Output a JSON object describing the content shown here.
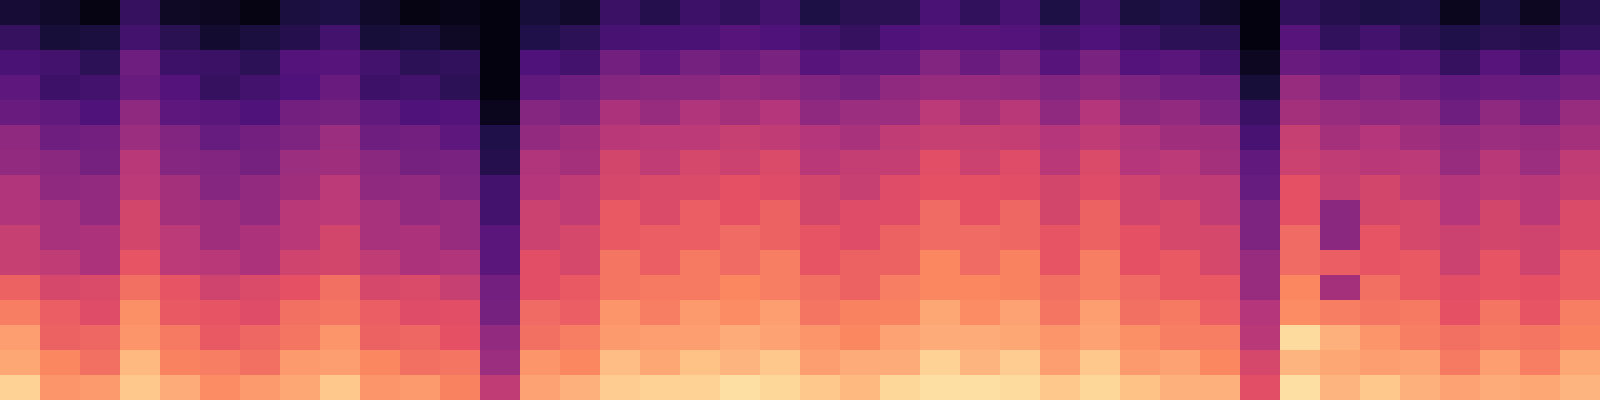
{
  "chart_data": {
    "type": "heatmap",
    "tick_labels": false,
    "zlim": [
      0,
      1
    ],
    "values": [
      [
        0.1,
        0.08,
        0.03,
        0.19,
        0.07,
        0.06,
        0.03,
        0.12,
        0.13,
        0.08,
        0.03,
        0.04,
        0.02,
        0.11,
        0.08,
        0.2,
        0.15,
        0.21,
        0.18,
        0.22,
        0.13,
        0.16,
        0.16,
        0.24,
        0.18,
        0.23,
        0.13,
        0.22,
        0.12,
        0.14,
        0.08,
        0.02,
        0.18,
        0.15,
        0.13,
        0.14,
        0.05,
        0.13,
        0.06,
        0.15
      ],
      [
        0.19,
        0.11,
        0.12,
        0.22,
        0.16,
        0.09,
        0.12,
        0.15,
        0.22,
        0.11,
        0.12,
        0.07,
        0.02,
        0.14,
        0.17,
        0.23,
        0.24,
        0.24,
        0.27,
        0.25,
        0.22,
        0.19,
        0.25,
        0.27,
        0.27,
        0.26,
        0.22,
        0.25,
        0.21,
        0.17,
        0.17,
        0.02,
        0.27,
        0.18,
        0.22,
        0.17,
        0.14,
        0.16,
        0.15,
        0.18
      ],
      [
        0.24,
        0.22,
        0.17,
        0.33,
        0.21,
        0.2,
        0.17,
        0.26,
        0.27,
        0.22,
        0.17,
        0.18,
        0.02,
        0.25,
        0.22,
        0.34,
        0.29,
        0.35,
        0.32,
        0.36,
        0.27,
        0.3,
        0.3,
        0.38,
        0.32,
        0.37,
        0.27,
        0.36,
        0.26,
        0.28,
        0.22,
        0.06,
        0.32,
        0.29,
        0.27,
        0.28,
        0.19,
        0.27,
        0.2,
        0.29
      ],
      [
        0.29,
        0.21,
        0.22,
        0.32,
        0.26,
        0.19,
        0.22,
        0.25,
        0.32,
        0.21,
        0.22,
        0.17,
        0.02,
        0.3,
        0.33,
        0.39,
        0.4,
        0.4,
        0.43,
        0.41,
        0.38,
        0.35,
        0.41,
        0.43,
        0.43,
        0.42,
        0.38,
        0.41,
        0.37,
        0.33,
        0.33,
        0.11,
        0.43,
        0.34,
        0.38,
        0.33,
        0.3,
        0.32,
        0.31,
        0.34
      ],
      [
        0.32,
        0.3,
        0.25,
        0.41,
        0.29,
        0.28,
        0.25,
        0.34,
        0.35,
        0.3,
        0.25,
        0.26,
        0.05,
        0.39,
        0.36,
        0.48,
        0.43,
        0.49,
        0.46,
        0.5,
        0.41,
        0.44,
        0.44,
        0.52,
        0.46,
        0.51,
        0.41,
        0.5,
        0.4,
        0.42,
        0.36,
        0.2,
        0.46,
        0.43,
        0.41,
        0.42,
        0.33,
        0.41,
        0.34,
        0.43
      ],
      [
        0.41,
        0.33,
        0.34,
        0.44,
        0.38,
        0.31,
        0.34,
        0.37,
        0.44,
        0.33,
        0.34,
        0.29,
        0.14,
        0.42,
        0.45,
        0.51,
        0.52,
        0.52,
        0.55,
        0.53,
        0.5,
        0.47,
        0.53,
        0.55,
        0.55,
        0.54,
        0.5,
        0.53,
        0.49,
        0.45,
        0.45,
        0.23,
        0.55,
        0.46,
        0.5,
        0.45,
        0.42,
        0.44,
        0.43,
        0.46
      ],
      [
        0.42,
        0.4,
        0.35,
        0.51,
        0.39,
        0.38,
        0.35,
        0.44,
        0.45,
        0.4,
        0.35,
        0.36,
        0.15,
        0.49,
        0.46,
        0.58,
        0.53,
        0.59,
        0.56,
        0.6,
        0.51,
        0.54,
        0.54,
        0.62,
        0.56,
        0.61,
        0.51,
        0.6,
        0.5,
        0.52,
        0.46,
        0.3,
        0.56,
        0.53,
        0.51,
        0.52,
        0.43,
        0.51,
        0.44,
        0.53
      ],
      [
        0.49,
        0.41,
        0.42,
        0.52,
        0.46,
        0.39,
        0.42,
        0.45,
        0.52,
        0.41,
        0.42,
        0.37,
        0.22,
        0.5,
        0.53,
        0.59,
        0.6,
        0.6,
        0.63,
        0.61,
        0.58,
        0.55,
        0.61,
        0.63,
        0.63,
        0.62,
        0.58,
        0.61,
        0.57,
        0.53,
        0.53,
        0.31,
        0.63,
        0.54,
        0.58,
        0.53,
        0.5,
        0.52,
        0.51,
        0.54
      ],
      [
        0.49,
        0.47,
        0.42,
        0.58,
        0.46,
        0.45,
        0.42,
        0.51,
        0.52,
        0.47,
        0.42,
        0.43,
        0.22,
        0.56,
        0.53,
        0.65,
        0.6,
        0.66,
        0.63,
        0.67,
        0.58,
        0.61,
        0.61,
        0.69,
        0.63,
        0.68,
        0.58,
        0.67,
        0.57,
        0.59,
        0.53,
        0.37,
        0.63,
        0.4,
        0.58,
        0.59,
        0.5,
        0.58,
        0.51,
        0.6
      ],
      [
        0.55,
        0.47,
        0.48,
        0.58,
        0.52,
        0.45,
        0.48,
        0.51,
        0.58,
        0.47,
        0.48,
        0.43,
        0.28,
        0.56,
        0.59,
        0.65,
        0.66,
        0.66,
        0.69,
        0.67,
        0.64,
        0.61,
        0.67,
        0.69,
        0.69,
        0.68,
        0.64,
        0.67,
        0.63,
        0.59,
        0.59,
        0.37,
        0.69,
        0.4,
        0.64,
        0.59,
        0.56,
        0.58,
        0.57,
        0.6
      ],
      [
        0.55,
        0.53,
        0.48,
        0.64,
        0.52,
        0.51,
        0.48,
        0.57,
        0.58,
        0.53,
        0.48,
        0.49,
        0.28,
        0.62,
        0.59,
        0.71,
        0.66,
        0.72,
        0.69,
        0.73,
        0.64,
        0.67,
        0.67,
        0.75,
        0.69,
        0.74,
        0.64,
        0.73,
        0.63,
        0.65,
        0.59,
        0.43,
        0.69,
        0.66,
        0.64,
        0.65,
        0.56,
        0.64,
        0.57,
        0.66
      ],
      [
        0.67,
        0.59,
        0.6,
        0.7,
        0.64,
        0.57,
        0.6,
        0.63,
        0.7,
        0.59,
        0.6,
        0.55,
        0.34,
        0.62,
        0.65,
        0.71,
        0.72,
        0.72,
        0.75,
        0.73,
        0.7,
        0.67,
        0.73,
        0.75,
        0.75,
        0.74,
        0.7,
        0.73,
        0.69,
        0.65,
        0.65,
        0.43,
        0.75,
        0.46,
        0.7,
        0.65,
        0.62,
        0.64,
        0.63,
        0.66
      ],
      [
        0.73,
        0.66,
        0.61,
        0.77,
        0.65,
        0.64,
        0.61,
        0.7,
        0.71,
        0.66,
        0.61,
        0.62,
        0.35,
        0.69,
        0.66,
        0.78,
        0.73,
        0.79,
        0.76,
        0.8,
        0.71,
        0.74,
        0.74,
        0.82,
        0.76,
        0.81,
        0.71,
        0.8,
        0.7,
        0.72,
        0.66,
        0.5,
        0.76,
        0.73,
        0.71,
        0.72,
        0.63,
        0.71,
        0.64,
        0.73
      ],
      [
        0.8,
        0.67,
        0.68,
        0.78,
        0.72,
        0.65,
        0.68,
        0.71,
        0.78,
        0.67,
        0.68,
        0.63,
        0.42,
        0.7,
        0.73,
        0.79,
        0.8,
        0.8,
        0.83,
        0.81,
        0.78,
        0.75,
        0.81,
        0.83,
        0.83,
        0.82,
        0.78,
        0.81,
        0.77,
        0.73,
        0.73,
        0.51,
        0.93,
        0.84,
        0.78,
        0.73,
        0.7,
        0.72,
        0.71,
        0.74
      ],
      [
        0.82,
        0.75,
        0.7,
        0.86,
        0.74,
        0.73,
        0.7,
        0.79,
        0.8,
        0.75,
        0.7,
        0.71,
        0.44,
        0.78,
        0.75,
        0.87,
        0.82,
        0.88,
        0.85,
        0.89,
        0.8,
        0.83,
        0.83,
        0.91,
        0.85,
        0.9,
        0.8,
        0.89,
        0.79,
        0.81,
        0.75,
        0.59,
        0.85,
        0.82,
        0.8,
        0.81,
        0.72,
        0.8,
        0.73,
        0.82
      ],
      [
        0.91,
        0.78,
        0.79,
        0.89,
        0.83,
        0.76,
        0.79,
        0.82,
        0.89,
        0.78,
        0.79,
        0.74,
        0.53,
        0.81,
        0.84,
        0.9,
        0.91,
        0.91,
        0.94,
        0.92,
        0.89,
        0.86,
        0.92,
        0.94,
        0.94,
        0.93,
        0.89,
        0.92,
        0.88,
        0.84,
        0.84,
        0.62,
        0.94,
        0.85,
        0.89,
        0.84,
        0.81,
        0.83,
        0.82,
        0.85
      ]
    ]
  }
}
